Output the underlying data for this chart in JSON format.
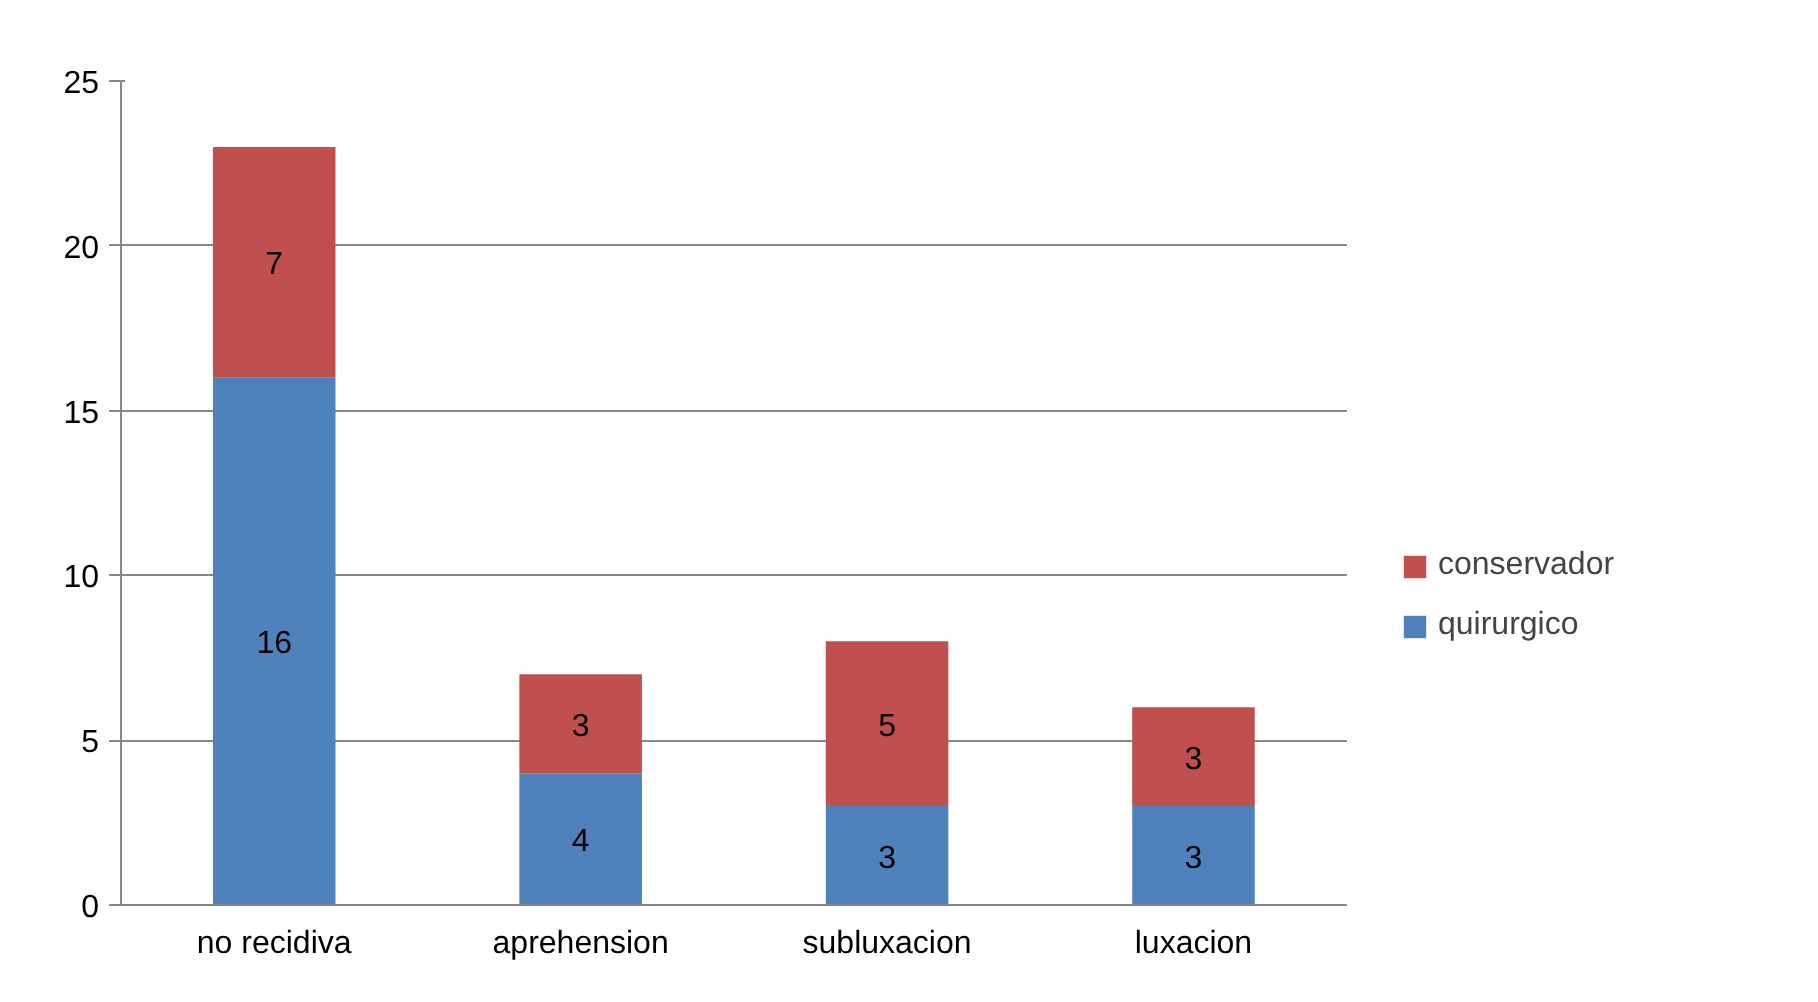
{
  "chart_data": {
    "type": "bar",
    "stacked": true,
    "categories": [
      "no recidiva",
      "aprehension",
      "subluxacion",
      "luxacion"
    ],
    "series": [
      {
        "name": "quirurgico",
        "color": "#4f81bd",
        "values": [
          16,
          4,
          3,
          3
        ]
      },
      {
        "name": "conservador",
        "color": "#c0504d",
        "values": [
          7,
          3,
          5,
          3
        ]
      }
    ],
    "ylim": [
      0,
      25
    ],
    "yticks": [
      0,
      5,
      10,
      15,
      20,
      25
    ],
    "grid": "y",
    "legend": "right",
    "data_labels": true
  }
}
